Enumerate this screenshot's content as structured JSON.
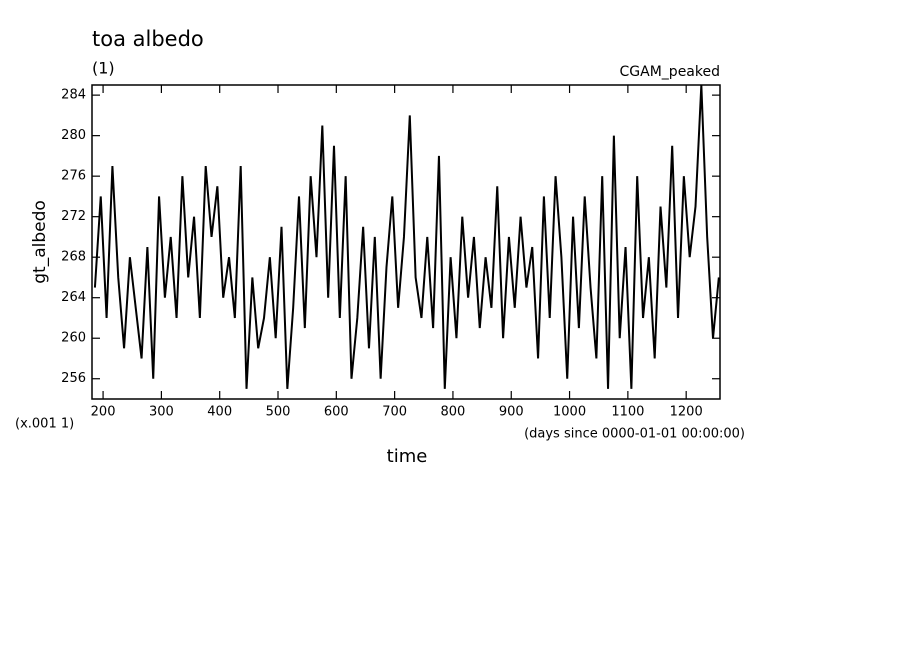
{
  "chart_data": {
    "type": "line",
    "title": "toa albedo",
    "subtitle": "(1)",
    "annotation": "CGAM_peaked",
    "ylabel": "gt_albedo",
    "yunit": "(x.001 1)",
    "xlabel": "time",
    "xunit": "(days since 0000-01-01 00:00:00)",
    "xlim": [
      181,
      1258
    ],
    "ylim": [
      254,
      285
    ],
    "xticks": [
      200,
      300,
      400,
      500,
      600,
      700,
      800,
      900,
      1000,
      1100,
      1200
    ],
    "yticks": [
      256,
      260,
      264,
      268,
      272,
      276,
      280,
      284
    ],
    "grid": false,
    "series": [
      {
        "name": "gt_albedo",
        "color": "#000000",
        "x": [
          186,
          196,
          206,
          216,
          226,
          236,
          246,
          256,
          266,
          276,
          286,
          296,
          306,
          316,
          326,
          336,
          346,
          356,
          366,
          376,
          386,
          396,
          406,
          416,
          426,
          436,
          446,
          456,
          466,
          476,
          486,
          496,
          506,
          516,
          526,
          536,
          546,
          556,
          566,
          576,
          586,
          596,
          606,
          616,
          626,
          636,
          646,
          656,
          666,
          676,
          686,
          696,
          706,
          716,
          726,
          736,
          746,
          756,
          766,
          776,
          786,
          796,
          806,
          816,
          826,
          836,
          846,
          856,
          866,
          876,
          886,
          896,
          906,
          916,
          926,
          936,
          946,
          956,
          966,
          976,
          986,
          996,
          1006,
          1016,
          1026,
          1036,
          1046,
          1056,
          1066,
          1076,
          1086,
          1096,
          1106,
          1116,
          1126,
          1136,
          1146,
          1156,
          1166,
          1176,
          1186,
          1196,
          1206,
          1216,
          1226,
          1236,
          1246,
          1256
        ],
        "values": [
          265,
          274,
          262,
          277,
          266,
          259,
          268,
          263,
          258,
          269,
          256,
          274,
          264,
          270,
          262,
          276,
          266,
          272,
          262,
          277,
          270,
          275,
          264,
          268,
          262,
          277,
          255,
          266,
          259,
          262,
          268,
          260,
          271,
          255,
          263,
          274,
          261,
          276,
          268,
          281,
          264,
          279,
          262,
          276,
          256,
          262,
          271,
          259,
          270,
          256,
          267,
          274,
          263,
          270,
          282,
          266,
          262,
          270,
          261,
          278,
          255,
          268,
          260,
          272,
          264,
          270,
          261,
          268,
          263,
          275,
          260,
          270,
          263,
          272,
          265,
          269,
          258,
          274,
          262,
          276,
          268,
          256,
          272,
          261,
          274,
          265,
          258,
          276,
          255,
          280,
          260,
          269,
          255,
          276,
          262,
          268,
          258,
          273,
          265,
          279,
          262,
          276,
          268,
          273,
          285,
          270,
          260,
          266
        ]
      }
    ]
  }
}
